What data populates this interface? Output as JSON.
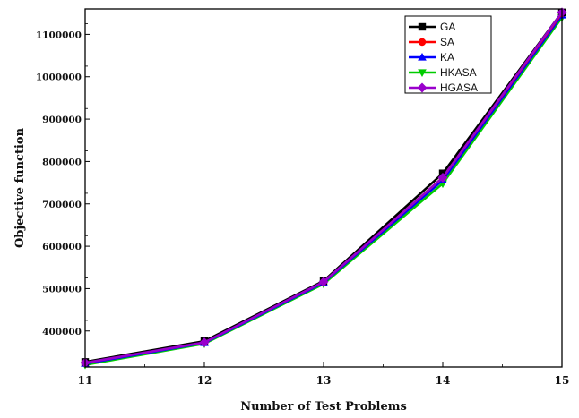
{
  "chart_data": {
    "type": "line",
    "title": "",
    "xlabel": "Number of Test Problems",
    "ylabel": "Objective function",
    "x": [
      11,
      12,
      13,
      14,
      15
    ],
    "xlim": [
      11,
      15
    ],
    "ylim": [
      315000,
      1160000
    ],
    "x_ticks": [
      "11",
      "12",
      "13",
      "14",
      "15"
    ],
    "y_ticks": [
      400000,
      500000,
      600000,
      700000,
      800000,
      900000,
      1000000,
      1100000
    ],
    "y_tick_labels": [
      "400000",
      "500000",
      "600000",
      "700000",
      "800000",
      "900000",
      "1000000",
      "1100000"
    ],
    "grid": false,
    "legend_position": "top-right",
    "series": [
      {
        "name": "GA",
        "values": [
          327000,
          376000,
          518000,
          772000,
          1152000
        ],
        "color": "#000000",
        "marker": "square"
      },
      {
        "name": "SA",
        "values": [
          325000,
          374000,
          516000,
          762000,
          1150000
        ],
        "color": "#ff0000",
        "marker": "circle"
      },
      {
        "name": "KA",
        "values": [
          323000,
          372000,
          514000,
          756000,
          1145000
        ],
        "color": "#0000ff",
        "marker": "triangle-up"
      },
      {
        "name": "HKASA",
        "values": [
          320000,
          370000,
          511000,
          748000,
          1140000
        ],
        "color": "#00cc00",
        "marker": "triangle-down"
      },
      {
        "name": "HGASA",
        "values": [
          325000,
          373000,
          516000,
          762000,
          1152000
        ],
        "color": "#9900cc",
        "marker": "diamond"
      }
    ]
  }
}
